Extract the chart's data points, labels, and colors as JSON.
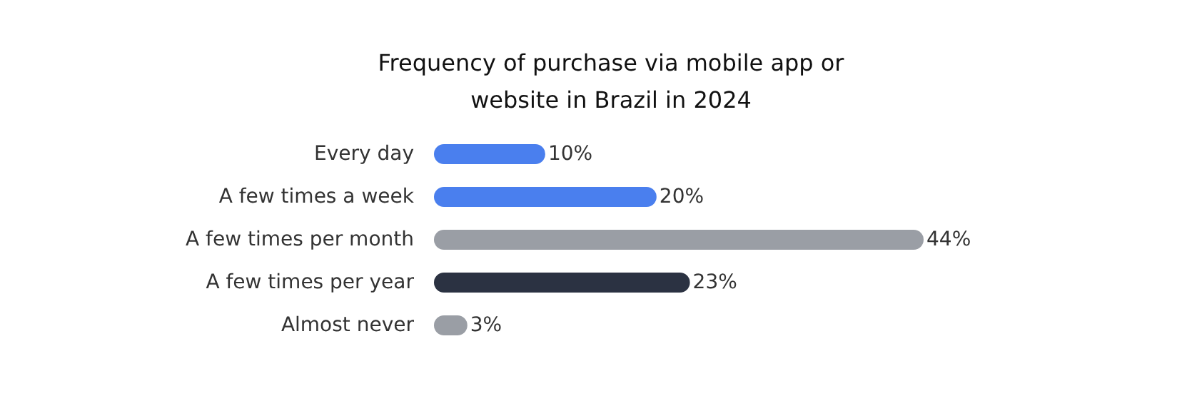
{
  "chart_data": {
    "type": "bar",
    "orientation": "horizontal",
    "title": "Frequency of purchase via mobile app or\nwebsite in Brazil in 2024",
    "categories": [
      "Every day",
      "A few times a week",
      "A few times per month",
      "A few times per year",
      "Almost never"
    ],
    "values": [
      10,
      20,
      44,
      23,
      3
    ],
    "colors": [
      "#4a7fee",
      "#4a7fee",
      "#9a9ea5",
      "#2b3242",
      "#9a9ea5"
    ],
    "value_labels": [
      "10%",
      "20%",
      "44%",
      "23%",
      "3%"
    ]
  }
}
